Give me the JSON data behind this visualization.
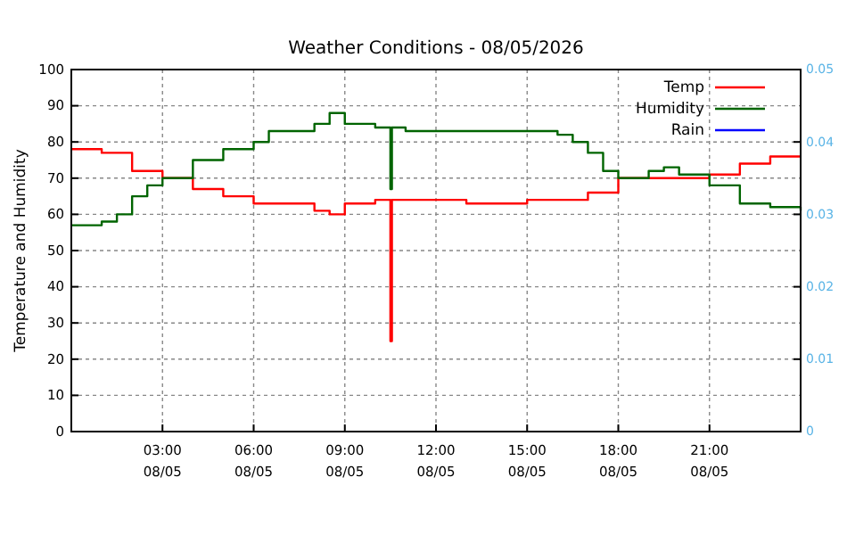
{
  "chart_data": {
    "type": "step",
    "title": "Weather Conditions - 08/05/2026",
    "ylabel": "Temperature and Humidity",
    "xlim": [
      "2026-05-08T00:00",
      "2026-05-09T00:00"
    ],
    "xticks": [
      {
        "value": "2026-05-08T03:00",
        "label": "03:00\n08/05"
      },
      {
        "value": "2026-05-08T06:00",
        "label": "06:00\n08/05"
      },
      {
        "value": "2026-05-08T09:00",
        "label": "09:00\n08/05"
      },
      {
        "value": "2026-05-08T12:00",
        "label": "12:00\n08/05"
      },
      {
        "value": "2026-05-08T15:00",
        "label": "15:00\n08/05"
      },
      {
        "value": "2026-05-08T18:00",
        "label": "18:00\n08/05"
      },
      {
        "value": "2026-05-08T21:00",
        "label": "21:00\n08/05"
      }
    ],
    "ylim": [
      0,
      100
    ],
    "yticks": [
      0,
      10,
      20,
      30,
      40,
      50,
      60,
      70,
      80,
      90,
      100
    ],
    "y2lim": [
      0,
      0.05
    ],
    "y2ticks": [
      0,
      0.01,
      0.02,
      0.03,
      0.04,
      0.05
    ],
    "grid": true,
    "legend": "top right",
    "line_style": "solid",
    "series": [
      {
        "name": "Temp",
        "color": "#ff0000",
        "x": [
          "2026-05-08T00:00",
          "2026-05-08T01:00",
          "2026-05-08T02:00",
          "2026-05-08T03:00",
          "2026-05-08T04:00",
          "2026-05-08T05:00",
          "2026-05-08T06:00",
          "2026-05-08T07:00",
          "2026-05-08T08:00",
          "2026-05-08T08:30",
          "2026-05-08T09:00",
          "2026-05-08T10:00",
          "2026-05-08T10:27",
          "2026-05-08T10:30",
          "2026-05-08T10:33",
          "2026-05-08T11:00",
          "2026-05-08T12:00",
          "2026-05-08T13:00",
          "2026-05-08T14:00",
          "2026-05-08T15:00",
          "2026-05-08T16:00",
          "2026-05-08T17:00",
          "2026-05-08T18:00",
          "2026-05-08T19:00",
          "2026-05-08T20:00",
          "2026-05-08T21:00",
          "2026-05-08T22:00",
          "2026-05-08T23:00",
          "2026-05-09T00:00"
        ],
        "values": [
          78,
          77,
          72,
          70,
          67,
          65,
          63,
          63,
          61,
          60,
          63,
          64,
          64,
          25,
          64,
          64,
          64,
          63,
          63,
          64,
          64,
          66,
          70,
          70,
          70,
          71,
          74,
          76,
          76
        ]
      },
      {
        "name": "Humidity",
        "color": "#006400",
        "x": [
          "2026-05-08T00:00",
          "2026-05-08T01:00",
          "2026-05-08T01:30",
          "2026-05-08T02:00",
          "2026-05-08T02:30",
          "2026-05-08T03:00",
          "2026-05-08T04:00",
          "2026-05-08T05:00",
          "2026-05-08T06:00",
          "2026-05-08T06:30",
          "2026-05-08T07:00",
          "2026-05-08T08:00",
          "2026-05-08T08:30",
          "2026-05-08T09:00",
          "2026-05-08T10:00",
          "2026-05-08T10:27",
          "2026-05-08T10:30",
          "2026-05-08T10:33",
          "2026-05-08T11:00",
          "2026-05-08T13:00",
          "2026-05-08T16:00",
          "2026-05-08T16:30",
          "2026-05-08T17:00",
          "2026-05-08T17:30",
          "2026-05-08T18:00",
          "2026-05-08T19:00",
          "2026-05-08T19:30",
          "2026-05-08T20:00",
          "2026-05-08T21:00",
          "2026-05-08T22:00",
          "2026-05-08T23:00",
          "2026-05-09T00:00"
        ],
        "values": [
          57,
          58,
          60,
          65,
          68,
          70,
          75,
          78,
          80,
          83,
          83,
          85,
          88,
          85,
          84,
          84,
          67,
          84,
          83,
          83,
          82,
          80,
          77,
          72,
          70,
          72,
          73,
          71,
          68,
          63,
          62,
          61
        ]
      },
      {
        "name": "Rain",
        "color": "#0000ff"
      }
    ]
  }
}
